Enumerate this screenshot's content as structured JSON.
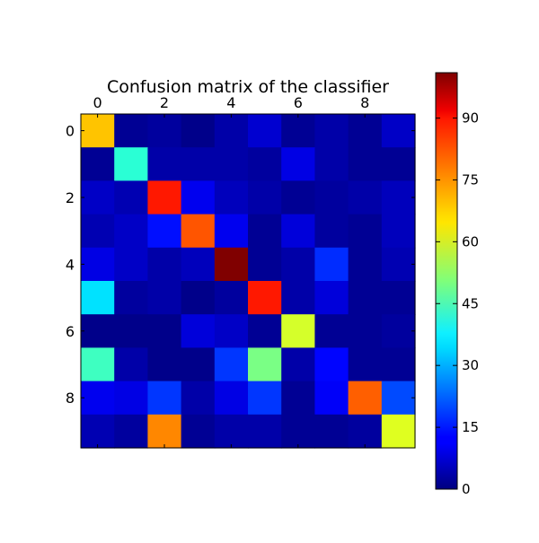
{
  "chart_data": {
    "type": "heatmap",
    "title": "Confusion matrix of the classifier",
    "rows": 10,
    "cols": 10,
    "x_tick_values": [
      0,
      2,
      4,
      6,
      8
    ],
    "x_tick_labels": [
      "0",
      "2",
      "4",
      "6",
      "8"
    ],
    "x_ticks_position": "top",
    "y_tick_values": [
      0,
      2,
      4,
      6,
      8
    ],
    "y_tick_labels": [
      "0",
      "2",
      "4",
      "6",
      "8"
    ],
    "colormap": "jet",
    "value_range": [
      0,
      101
    ],
    "colorbar_ticks": [
      0,
      15,
      30,
      45,
      60,
      75,
      90
    ],
    "colorbar_tick_labels": [
      "0",
      "15",
      "30",
      "45",
      "60",
      "75",
      "90"
    ],
    "matrix": [
      [
        69,
        2,
        3,
        1,
        4,
        8,
        2,
        4,
        2,
        7
      ],
      [
        2,
        42,
        4,
        4,
        4,
        3,
        10,
        4,
        2,
        2
      ],
      [
        7,
        5,
        86,
        11,
        6,
        4,
        2,
        3,
        4,
        6
      ],
      [
        5,
        7,
        14,
        80,
        11,
        2,
        9,
        3,
        2,
        6
      ],
      [
        10,
        7,
        4,
        6,
        101,
        2,
        4,
        17,
        2,
        5
      ],
      [
        35,
        3,
        4,
        1,
        3,
        86,
        4,
        9,
        2,
        2
      ],
      [
        1,
        1,
        1,
        9,
        7,
        2,
        59,
        2,
        2,
        3
      ],
      [
        44,
        4,
        1,
        1,
        18,
        50,
        4,
        13,
        2,
        2
      ],
      [
        11,
        10,
        18,
        4,
        10,
        18,
        2,
        12,
        79,
        20
      ],
      [
        5,
        3,
        75,
        2,
        4,
        4,
        2,
        2,
        3,
        60
      ]
    ]
  }
}
